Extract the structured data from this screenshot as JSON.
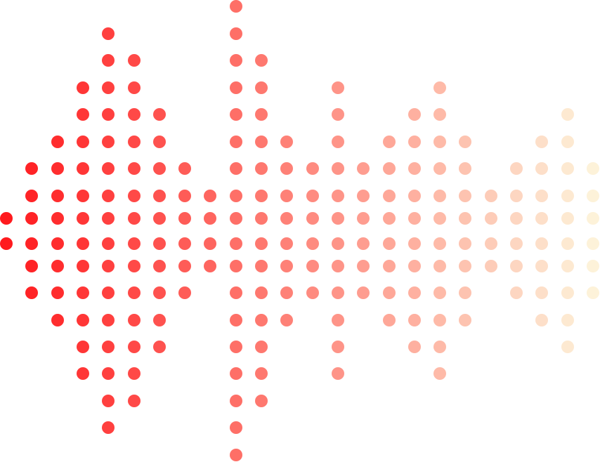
{
  "graphic": {
    "description_type": "dot-matrix sound wave",
    "column_half_heights": [
      1,
      3,
      4,
      6,
      8,
      7,
      5,
      3,
      2,
      9,
      7,
      4,
      3,
      6,
      3,
      4,
      5,
      6,
      4,
      2,
      3,
      4,
      5,
      3
    ],
    "colors": {
      "start": "#ff1a1e",
      "end": "#fdf2d9"
    }
  }
}
